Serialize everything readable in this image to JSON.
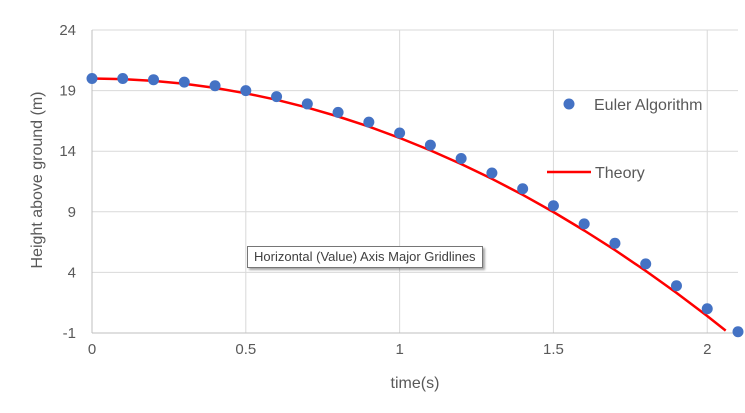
{
  "chart_data": {
    "type": "scatter",
    "title": "",
    "xlabel": "time(s)",
    "ylabel": "Height above ground (m)",
    "xlim": [
      0,
      2.1
    ],
    "ylim": [
      -1,
      24
    ],
    "xticks": [
      0,
      0.5,
      1,
      1.5,
      2
    ],
    "xtick_labels": [
      "0",
      "0.5",
      "1",
      "1.5",
      "2"
    ],
    "yticks": [
      -1,
      4,
      9,
      14,
      19,
      24
    ],
    "ytick_labels": [
      "-1",
      "4",
      "9",
      "14",
      "19",
      "24"
    ],
    "grid": true,
    "legend_position": "right",
    "series": [
      {
        "name": "Euler Algorithm",
        "kind": "markers",
        "color": "#4472C4",
        "x": [
          0,
          0.1,
          0.2,
          0.3,
          0.4,
          0.5,
          0.6,
          0.7,
          0.8,
          0.9,
          1.0,
          1.1,
          1.2,
          1.3,
          1.4,
          1.5,
          1.6,
          1.7,
          1.8,
          1.9,
          2.0,
          2.1
        ],
        "y": [
          20.0,
          20.0,
          19.9,
          19.7,
          19.4,
          19.0,
          18.5,
          17.9,
          17.2,
          16.4,
          15.5,
          14.5,
          13.4,
          12.2,
          10.9,
          9.5,
          8.0,
          6.4,
          4.7,
          2.9,
          1.0,
          -0.9
        ]
      },
      {
        "name": "Theory",
        "kind": "line",
        "color": "#FF0000",
        "x": [
          0,
          0.1,
          0.2,
          0.3,
          0.4,
          0.5,
          0.6,
          0.7,
          0.8,
          0.9,
          1.0,
          1.1,
          1.2,
          1.3,
          1.4,
          1.5,
          1.6,
          1.7,
          1.8,
          1.9,
          2.0,
          2.06
        ],
        "y": [
          20.0,
          19.95,
          19.8,
          19.56,
          19.22,
          18.78,
          18.24,
          17.6,
          16.86,
          16.03,
          15.1,
          14.07,
          12.94,
          11.72,
          10.4,
          8.98,
          7.46,
          5.84,
          4.12,
          2.31,
          0.4,
          -0.8
        ]
      }
    ]
  },
  "tooltip": {
    "text": "Horizontal (Value) Axis Major Gridlines"
  }
}
